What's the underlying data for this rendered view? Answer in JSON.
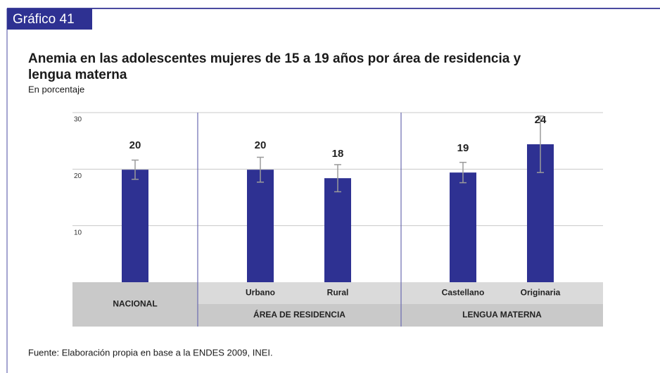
{
  "chart_data": {
    "type": "bar",
    "label": "Gráfico 41",
    "title_lines": [
      "Anemia en las adolescentes mujeres de 15 a 19 años por área de residencia y",
      "lengua materna"
    ],
    "subtitle": "En porcentaje",
    "categories": [
      "NACIONAL",
      "Urbano",
      "Rural",
      "Castellano",
      "Originaria"
    ],
    "groups": [
      "ÁREA DE RESIDENCIA",
      "LENGUA MATERNA"
    ],
    "values": [
      19.9,
      19.9,
      18.4,
      19.4,
      24.4
    ],
    "value_labels": [
      "20",
      "20",
      "18",
      "19",
      "24"
    ],
    "errors": [
      1.7,
      2.2,
      2.4,
      1.8,
      5.0
    ],
    "color": "#2e3192",
    "error_color": "#9a9a9a",
    "ylim": [
      0,
      30
    ],
    "yticks": [
      10,
      20,
      30
    ],
    "grid": true,
    "source": "Fuente: Elaboración propia en base a la ENDES 2009, INEI."
  }
}
